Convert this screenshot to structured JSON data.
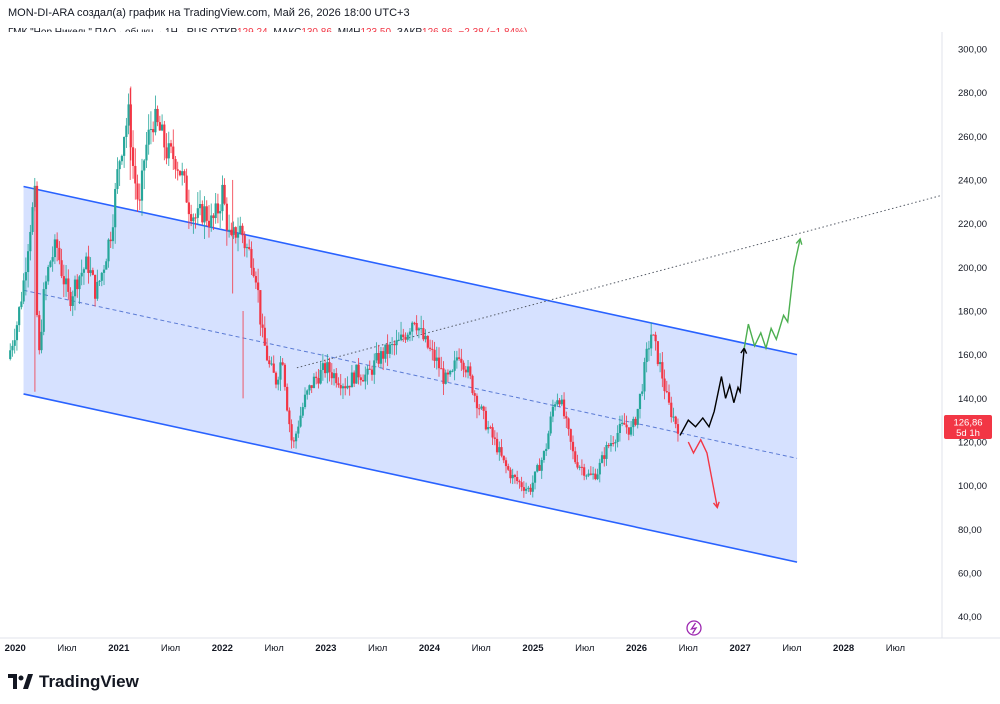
{
  "header": {
    "text": "MON-DI-ARA создал(а) график на TradingView.com, Май 26, 2026 18:00 UTC+3"
  },
  "legend": {
    "symbol": "ГМК \"Нор.Никель\" ПАО · обыкн. · 1Н · RUS",
    "open_label": "ОТКР",
    "open": "129,24",
    "high_label": "МАКС",
    "high": "130,86",
    "low_label": "МИН",
    "low": "123,50",
    "close_label": "ЗАКР",
    "close": "126,86",
    "change": "−2,38 (−1,84%)"
  },
  "price_label": {
    "value": "126,86",
    "interval": "5d 1h"
  },
  "brand": {
    "name": "TradingView"
  },
  "colors": {
    "up": "#26a69a",
    "down": "#f23645",
    "channel_line": "#2962ff",
    "channel_fill": "#cfdcff",
    "forecast_up": "#4caf50",
    "forecast_down": "#f23645"
  },
  "chart_data": {
    "type": "candlestick",
    "title": "ГМК \"Нор.Никель\" ПАО · обыкн. · 1Н · RUS",
    "x_ticks": [
      "2020",
      "Июл",
      "2021",
      "Июл",
      "2022",
      "Июл",
      "2023",
      "Июл",
      "2024",
      "Июл",
      "2025",
      "Июл",
      "2026",
      "Июл",
      "2027",
      "Июл",
      "2028",
      "Июл"
    ],
    "y_ticks": [
      "300,00",
      "280,00",
      "260,00",
      "240,00",
      "220,00",
      "200,00",
      "180,00",
      "160,00",
      "140,00",
      "120,00",
      "100,00",
      "80,00",
      "60,00",
      "40,00"
    ],
    "ylim": [
      33,
      305
    ],
    "xlim": [
      2019.93,
      2028.95
    ],
    "last_price": 126.86,
    "price_path": [
      [
        2019.93,
        158
      ],
      [
        2020.02,
        175
      ],
      [
        2020.08,
        193
      ],
      [
        2020.14,
        218
      ],
      [
        2020.19,
        232
      ],
      [
        2020.22,
        152
      ],
      [
        2020.27,
        185
      ],
      [
        2020.33,
        202
      ],
      [
        2020.4,
        210
      ],
      [
        2020.45,
        198
      ],
      [
        2020.52,
        185
      ],
      [
        2020.6,
        195
      ],
      [
        2020.7,
        202
      ],
      [
        2020.78,
        188
      ],
      [
        2020.85,
        200
      ],
      [
        2020.93,
        218
      ],
      [
        2021.0,
        248
      ],
      [
        2021.05,
        262
      ],
      [
        2021.1,
        270
      ],
      [
        2021.14,
        245
      ],
      [
        2021.2,
        226
      ],
      [
        2021.25,
        252
      ],
      [
        2021.33,
        268
      ],
      [
        2021.4,
        262
      ],
      [
        2021.47,
        252
      ],
      [
        2021.55,
        250
      ],
      [
        2021.62,
        240
      ],
      [
        2021.68,
        228
      ],
      [
        2021.75,
        222
      ],
      [
        2021.82,
        226
      ],
      [
        2021.9,
        220
      ],
      [
        2021.97,
        228
      ],
      [
        2022.0,
        235
      ],
      [
        2022.04,
        222
      ],
      [
        2022.08,
        210
      ],
      [
        2022.12,
        216
      ],
      [
        2022.18,
        218
      ],
      [
        2022.22,
        210
      ],
      [
        2022.28,
        205
      ],
      [
        2022.33,
        196
      ],
      [
        2022.38,
        170
      ],
      [
        2022.45,
        155
      ],
      [
        2022.52,
        148
      ],
      [
        2022.58,
        160
      ],
      [
        2022.63,
        135
      ],
      [
        2022.68,
        117
      ],
      [
        2022.73,
        128
      ],
      [
        2022.8,
        140
      ],
      [
        2022.88,
        148
      ],
      [
        2023.0,
        154
      ],
      [
        2023.1,
        150
      ],
      [
        2023.2,
        146
      ],
      [
        2023.3,
        152
      ],
      [
        2023.4,
        150
      ],
      [
        2023.5,
        158
      ],
      [
        2023.6,
        162
      ],
      [
        2023.7,
        165
      ],
      [
        2023.8,
        172
      ],
      [
        2023.85,
        178
      ],
      [
        2023.93,
        168
      ],
      [
        2024.0,
        162
      ],
      [
        2024.08,
        156
      ],
      [
        2024.15,
        148
      ],
      [
        2024.22,
        150
      ],
      [
        2024.28,
        162
      ],
      [
        2024.35,
        155
      ],
      [
        2024.45,
        140
      ],
      [
        2024.55,
        128
      ],
      [
        2024.65,
        118
      ],
      [
        2024.72,
        110
      ],
      [
        2024.8,
        104
      ],
      [
        2024.9,
        100
      ],
      [
        2024.97,
        98
      ],
      [
        2025.05,
        108
      ],
      [
        2025.12,
        116
      ],
      [
        2025.2,
        138
      ],
      [
        2025.25,
        142
      ],
      [
        2025.32,
        128
      ],
      [
        2025.4,
        112
      ],
      [
        2025.48,
        108
      ],
      [
        2025.55,
        104
      ],
      [
        2025.62,
        106
      ],
      [
        2025.7,
        116
      ],
      [
        2025.78,
        122
      ],
      [
        2025.88,
        128
      ],
      [
        2025.95,
        125
      ],
      [
        2026.0,
        132
      ],
      [
        2026.05,
        145
      ],
      [
        2026.1,
        160
      ],
      [
        2026.14,
        170
      ],
      [
        2026.2,
        160
      ],
      [
        2026.25,
        150
      ],
      [
        2026.3,
        138
      ],
      [
        2026.35,
        132
      ],
      [
        2026.4,
        126.86
      ]
    ],
    "channel": {
      "upper": [
        [
          2020.08,
          237
        ],
        [
          2027.55,
          160
        ]
      ],
      "lower": [
        [
          2020.08,
          142
        ],
        [
          2027.55,
          65
        ]
      ],
      "median": [
        [
          2020.08,
          189.5
        ],
        [
          2027.55,
          112.5
        ]
      ]
    },
    "trendline": [
      [
        2022.72,
        154
      ],
      [
        2028.95,
        233
      ]
    ],
    "forecast_main": [
      [
        2026.42,
        123
      ],
      [
        2026.5,
        130
      ],
      [
        2026.57,
        127
      ],
      [
        2026.64,
        131
      ],
      [
        2026.7,
        127
      ],
      [
        2026.75,
        134
      ],
      [
        2026.82,
        150
      ],
      [
        2026.86,
        140
      ],
      [
        2026.9,
        146
      ],
      [
        2026.94,
        138
      ],
      [
        2026.98,
        145
      ],
      [
        2027.0,
        143
      ],
      [
        2027.04,
        163
      ]
    ],
    "forecast_up": [
      [
        2027.04,
        163
      ],
      [
        2027.08,
        174
      ],
      [
        2027.14,
        164
      ],
      [
        2027.2,
        170
      ],
      [
        2027.25,
        163
      ],
      [
        2027.3,
        172
      ],
      [
        2027.35,
        167
      ],
      [
        2027.42,
        178
      ],
      [
        2027.46,
        175
      ],
      [
        2027.52,
        200
      ],
      [
        2027.58,
        213
      ]
    ],
    "forecast_down": [
      [
        2026.5,
        120
      ],
      [
        2026.55,
        115
      ],
      [
        2026.62,
        121
      ],
      [
        2026.68,
        115
      ],
      [
        2026.78,
        90
      ]
    ]
  }
}
